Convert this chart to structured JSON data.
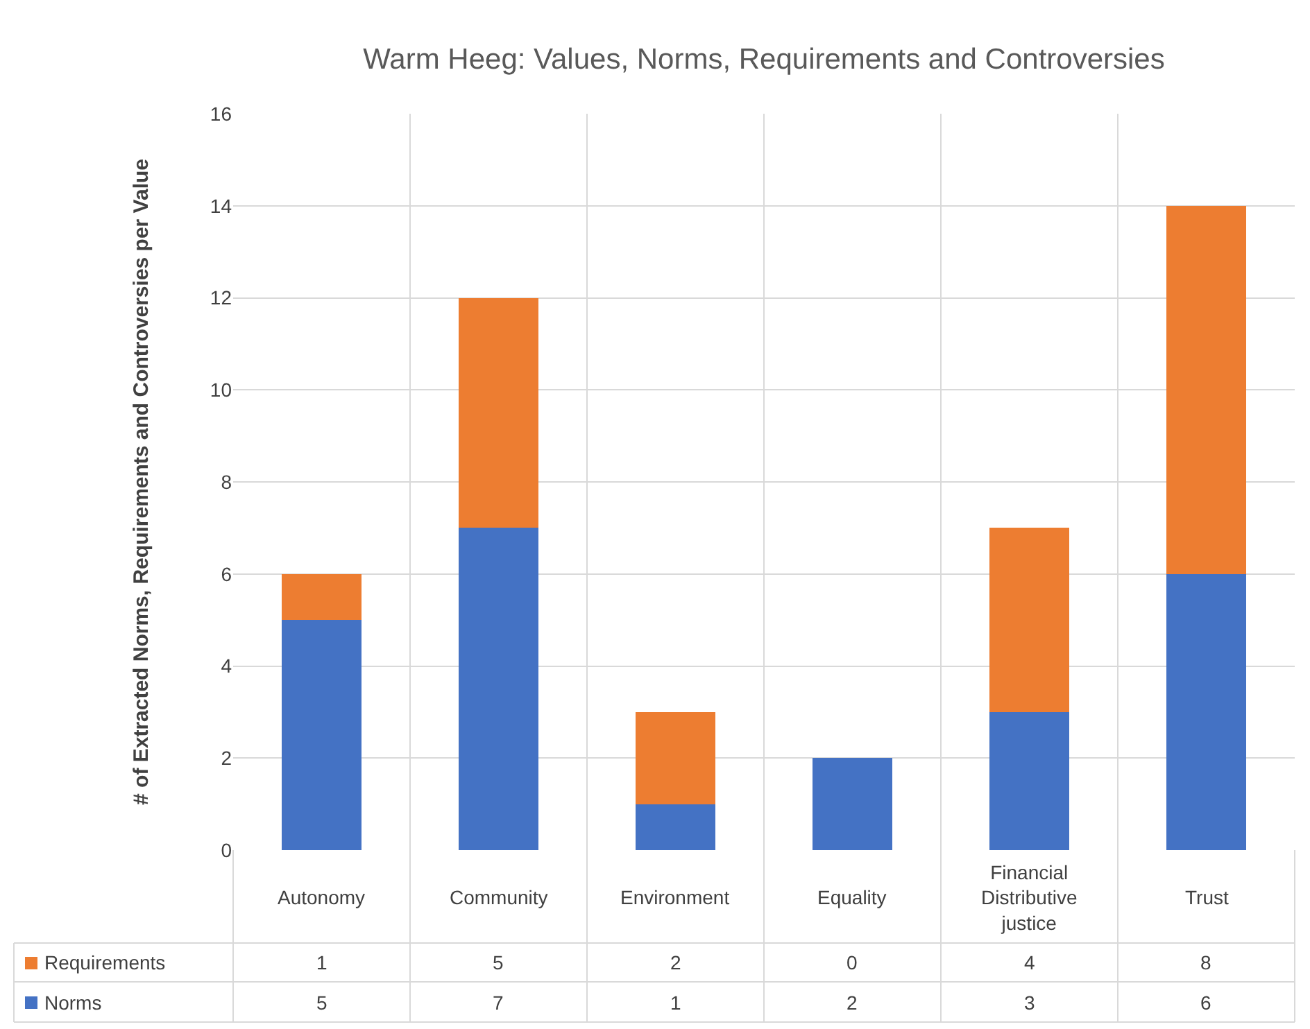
{
  "chart_data": {
    "type": "bar",
    "stacked": true,
    "title": "Warm Heeg: Values, Norms, Requirements and Controversies",
    "ylabel": "# of Extracted Norms, Requirements and Controversies per Value",
    "categories": [
      "Autonomy",
      "Community",
      "Environment",
      "Equality",
      "Financial Distributive justice",
      "Trust"
    ],
    "series": [
      {
        "name": "Norms",
        "color": "#4472c4",
        "values": [
          5,
          7,
          1,
          2,
          3,
          6
        ]
      },
      {
        "name": "Requirements",
        "color": "#ed7d31",
        "values": [
          1,
          5,
          2,
          0,
          4,
          8
        ]
      }
    ],
    "ylim": [
      0,
      16
    ],
    "yticks": [
      0,
      2,
      4,
      6,
      8,
      10,
      12,
      14,
      16
    ],
    "grid": true,
    "legend": "bottom",
    "data_labels": true
  }
}
